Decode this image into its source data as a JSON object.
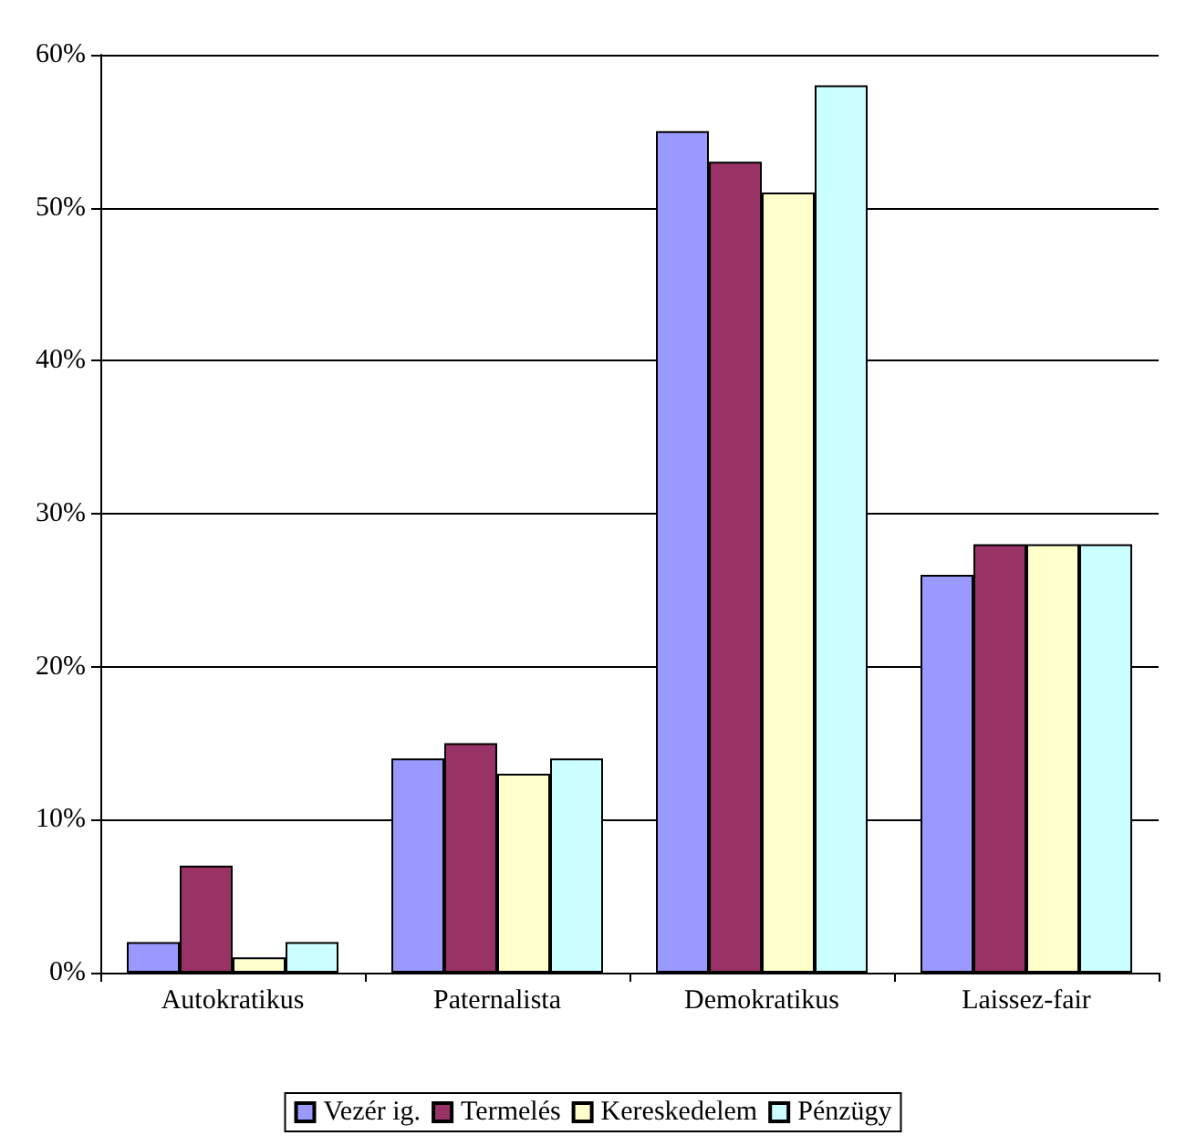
{
  "chart_data": {
    "type": "bar",
    "categories": [
      "Autokratikus",
      "Paternalista",
      "Demokratikus",
      "Laissez-fair"
    ],
    "series": [
      {
        "name": "Vezér ig.",
        "color": "#9999ff",
        "values": [
          2,
          14,
          55,
          26
        ]
      },
      {
        "name": "Termelés",
        "color": "#993366",
        "values": [
          7,
          15,
          53,
          28
        ]
      },
      {
        "name": "Kereskedelem",
        "color": "#ffffcc",
        "values": [
          1,
          13,
          51,
          28
        ]
      },
      {
        "name": "Pénzügy",
        "color": "#ccffff",
        "values": [
          2,
          14,
          58,
          28
        ]
      }
    ],
    "ylim": [
      0,
      60
    ],
    "yticks": [
      {
        "value": 0,
        "label": "0%"
      },
      {
        "value": 10,
        "label": "10%"
      },
      {
        "value": 20,
        "label": "20%"
      },
      {
        "value": 30,
        "label": "30%"
      },
      {
        "value": 40,
        "label": "40%"
      },
      {
        "value": 50,
        "label": "50%"
      },
      {
        "value": 60,
        "label": "60%"
      }
    ],
    "grid": "y",
    "legend": "bottom"
  }
}
